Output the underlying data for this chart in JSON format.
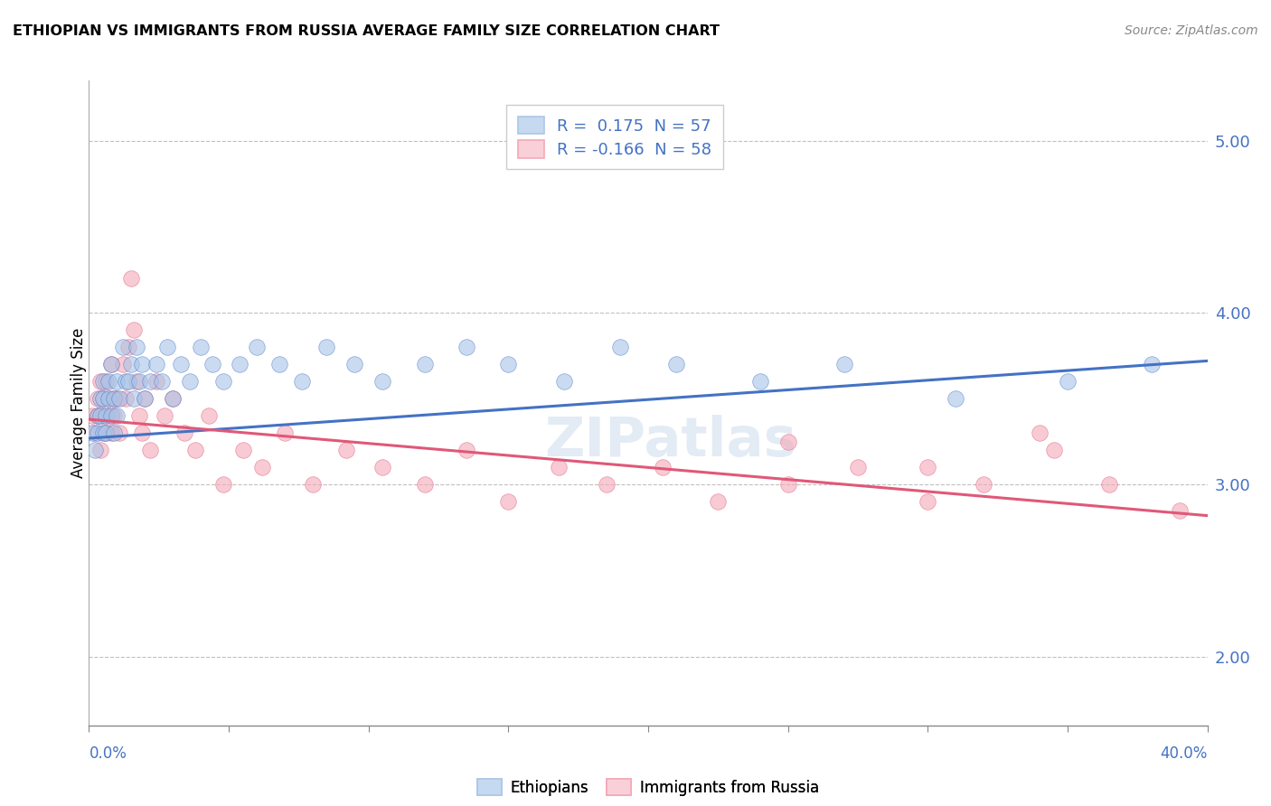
{
  "title": "ETHIOPIAN VS IMMIGRANTS FROM RUSSIA AVERAGE FAMILY SIZE CORRELATION CHART",
  "source": "Source: ZipAtlas.com",
  "ylabel": "Average Family Size",
  "right_yticks": [
    2.0,
    3.0,
    4.0,
    5.0
  ],
  "blue_line_color": "#4472c4",
  "pink_line_color": "#e05878",
  "blue_scatter_color": "#a8c4e8",
  "pink_scatter_color": "#f4a8b8",
  "blue_fill": "#c5d9f0",
  "pink_fill": "#fad0d8",
  "watermark": "ZIPatlas",
  "blue_r": "0.175",
  "blue_n": "57",
  "pink_r": "-0.166",
  "pink_n": "58",
  "blue_scatter_x": [
    0.001,
    0.002,
    0.003,
    0.003,
    0.004,
    0.004,
    0.005,
    0.005,
    0.005,
    0.006,
    0.006,
    0.007,
    0.007,
    0.008,
    0.008,
    0.009,
    0.009,
    0.01,
    0.01,
    0.011,
    0.012,
    0.013,
    0.014,
    0.015,
    0.016,
    0.017,
    0.018,
    0.019,
    0.02,
    0.022,
    0.024,
    0.026,
    0.028,
    0.03,
    0.033,
    0.036,
    0.04,
    0.044,
    0.048,
    0.054,
    0.06,
    0.068,
    0.076,
    0.085,
    0.095,
    0.105,
    0.12,
    0.135,
    0.15,
    0.17,
    0.19,
    0.21,
    0.24,
    0.27,
    0.31,
    0.35,
    0.38
  ],
  "blue_scatter_y": [
    3.3,
    3.2,
    3.4,
    3.3,
    3.5,
    3.4,
    3.3,
    3.5,
    3.6,
    3.3,
    3.4,
    3.6,
    3.5,
    3.7,
    3.4,
    3.3,
    3.5,
    3.4,
    3.6,
    3.5,
    3.8,
    3.6,
    3.6,
    3.7,
    3.5,
    3.8,
    3.6,
    3.7,
    3.5,
    3.6,
    3.7,
    3.6,
    3.8,
    3.5,
    3.7,
    3.6,
    3.8,
    3.7,
    3.6,
    3.7,
    3.8,
    3.7,
    3.6,
    3.8,
    3.7,
    3.6,
    3.7,
    3.8,
    3.7,
    3.6,
    3.8,
    3.7,
    3.6,
    3.7,
    3.5,
    3.6,
    3.7
  ],
  "pink_scatter_x": [
    0.001,
    0.002,
    0.003,
    0.003,
    0.004,
    0.004,
    0.005,
    0.005,
    0.006,
    0.006,
    0.007,
    0.007,
    0.008,
    0.008,
    0.009,
    0.009,
    0.01,
    0.011,
    0.012,
    0.013,
    0.014,
    0.015,
    0.016,
    0.017,
    0.018,
    0.019,
    0.02,
    0.022,
    0.024,
    0.027,
    0.03,
    0.034,
    0.038,
    0.043,
    0.048,
    0.055,
    0.062,
    0.07,
    0.08,
    0.092,
    0.105,
    0.12,
    0.135,
    0.15,
    0.168,
    0.185,
    0.205,
    0.225,
    0.25,
    0.275,
    0.3,
    0.32,
    0.345,
    0.365,
    0.39,
    0.25,
    0.3,
    0.34
  ],
  "pink_scatter_y": [
    3.4,
    3.3,
    3.5,
    3.4,
    3.6,
    3.2,
    3.5,
    3.4,
    3.6,
    3.3,
    3.5,
    3.4,
    3.7,
    3.3,
    3.5,
    3.4,
    3.5,
    3.3,
    3.7,
    3.5,
    3.8,
    4.2,
    3.9,
    3.6,
    3.4,
    3.3,
    3.5,
    3.2,
    3.6,
    3.4,
    3.5,
    3.3,
    3.2,
    3.4,
    3.0,
    3.2,
    3.1,
    3.3,
    3.0,
    3.2,
    3.1,
    3.0,
    3.2,
    2.9,
    3.1,
    3.0,
    3.1,
    2.9,
    3.0,
    3.1,
    2.9,
    3.0,
    3.2,
    3.0,
    2.85,
    3.25,
    3.1,
    3.3
  ]
}
